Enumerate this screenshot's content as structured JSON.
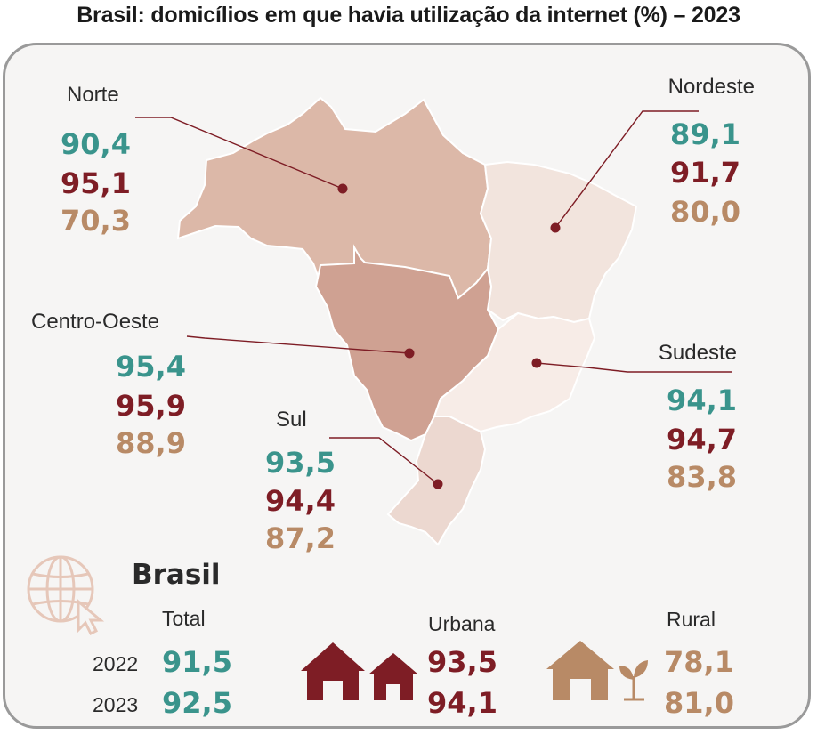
{
  "title": "Brasil: domicílios em que havia utilização da internet (%) – 2023",
  "colors": {
    "total": "#3a948c",
    "urbana": "#7e1d25",
    "rural": "#b88a66"
  },
  "regions": {
    "norte": {
      "name": "Norte",
      "total": "90,4",
      "urbana": "95,1",
      "rural": "70,3"
    },
    "nordeste": {
      "name": "Nordeste",
      "total": "89,1",
      "urbana": "91,7",
      "rural": "80,0"
    },
    "centro_oeste": {
      "name": "Centro-Oeste",
      "total": "95,4",
      "urbana": "95,9",
      "rural": "88,9"
    },
    "sudeste": {
      "name": "Sudeste",
      "total": "94,1",
      "urbana": "94,7",
      "rural": "83,8"
    },
    "sul": {
      "name": "Sul",
      "total": "93,5",
      "urbana": "94,4",
      "rural": "87,2"
    }
  },
  "brasil": {
    "title": "Brasil",
    "total_label": "Total",
    "urbana_label": "Urbana",
    "rural_label": "Rural",
    "years": [
      "2022",
      "2023"
    ],
    "total": [
      "91,5",
      "92,5"
    ],
    "urbana": [
      "93,5",
      "94,1"
    ],
    "rural": [
      "78,1",
      "81,0"
    ]
  },
  "icons": [
    "globe-cursor-icon",
    "houses-icon",
    "rural-house-plant-icon"
  ]
}
